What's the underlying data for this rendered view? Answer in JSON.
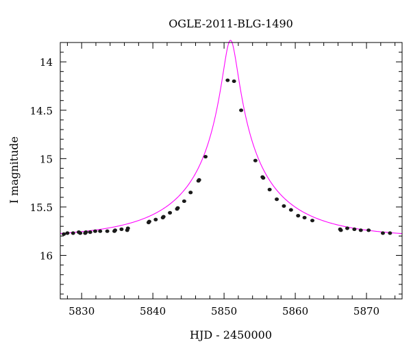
{
  "chart_data": {
    "type": "scatter",
    "title": "OGLE-2011-BLG-1490",
    "xlabel": "HJD - 2450000",
    "ylabel": "I magnitude",
    "xlim": [
      5827,
      5875
    ],
    "ylim": [
      16.45,
      13.8
    ],
    "y_inverted": true,
    "grid": false,
    "x_ticks": [
      5830,
      5840,
      5850,
      5860,
      5870
    ],
    "x_tick_labels": [
      "5830",
      "5840",
      "5850",
      "5860",
      "5870"
    ],
    "y_ticks": [
      14,
      14.5,
      15,
      15.5,
      16
    ],
    "y_tick_labels": [
      "14",
      "14.5",
      "15",
      "15.5",
      "16"
    ],
    "x_minor_step": 2,
    "y_minor_step": 0.1,
    "colors": {
      "points": "#1a1a1a",
      "model": "#ff00ff",
      "axes": "#000000"
    },
    "series": [
      {
        "kind": "points",
        "points": [
          [
            5827.5,
            15.78
          ],
          [
            5828.0,
            15.77
          ],
          [
            5828.8,
            15.77
          ],
          [
            5829.6,
            15.76
          ],
          [
            5829.8,
            15.77
          ],
          [
            5830.5,
            15.77
          ],
          [
            5830.6,
            15.76
          ],
          [
            5831.2,
            15.76
          ],
          [
            5831.9,
            15.75
          ],
          [
            5832.6,
            15.75
          ],
          [
            5833.6,
            15.75
          ],
          [
            5834.6,
            15.75
          ],
          [
            5834.7,
            15.74
          ],
          [
            5835.6,
            15.73
          ],
          [
            5836.4,
            15.74
          ],
          [
            5836.5,
            15.72
          ],
          [
            5839.4,
            15.66
          ],
          [
            5839.5,
            15.65
          ],
          [
            5840.4,
            15.63
          ],
          [
            5841.4,
            15.61
          ],
          [
            5841.5,
            15.6
          ],
          [
            5842.4,
            15.56
          ],
          [
            5843.4,
            15.52
          ],
          [
            5843.5,
            15.51
          ],
          [
            5844.4,
            15.44
          ],
          [
            5845.3,
            15.35
          ],
          [
            5846.4,
            15.23
          ],
          [
            5846.5,
            15.22
          ],
          [
            5847.4,
            14.98
          ],
          [
            5850.5,
            14.19
          ],
          [
            5851.4,
            14.2
          ],
          [
            5852.4,
            14.5
          ],
          [
            5854.4,
            15.02
          ],
          [
            5855.4,
            15.19
          ],
          [
            5855.5,
            15.2
          ],
          [
            5856.4,
            15.32
          ],
          [
            5857.4,
            15.42
          ],
          [
            5858.4,
            15.49
          ],
          [
            5859.4,
            15.53
          ],
          [
            5860.4,
            15.59
          ],
          [
            5861.3,
            15.61
          ],
          [
            5862.4,
            15.64
          ],
          [
            5866.3,
            15.73
          ],
          [
            5866.4,
            15.74
          ],
          [
            5867.3,
            15.72
          ],
          [
            5868.3,
            15.73
          ],
          [
            5869.2,
            15.74
          ],
          [
            5870.3,
            15.74
          ],
          [
            5872.3,
            15.77
          ],
          [
            5873.3,
            15.77
          ]
        ]
      },
      {
        "kind": "model",
        "model": {
          "t0": 5850.9,
          "tE": 14.5,
          "u0": 0.0703,
          "fs": 0.42,
          "base": 15.82
        }
      }
    ]
  }
}
